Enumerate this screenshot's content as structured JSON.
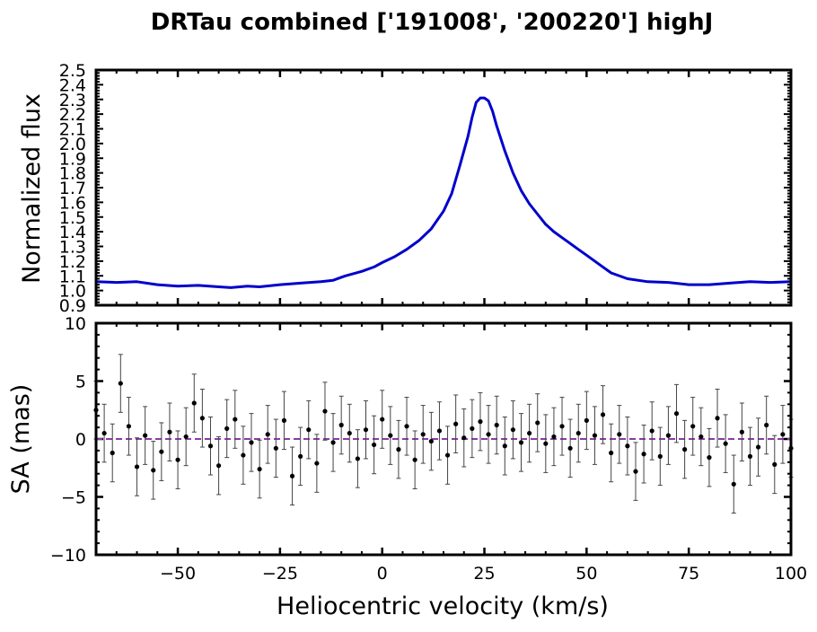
{
  "chart_data": {
    "title": "DRTau combined ['191008', '200220'] highJ",
    "shared_xaxis": {
      "label": "Heliocentric velocity (km/s)",
      "range": [
        -70,
        100
      ],
      "ticks": [
        -50,
        -25,
        0,
        25,
        50,
        75,
        100
      ],
      "tick_labels": [
        "−50",
        "−25",
        "0",
        "25",
        "50",
        "75",
        "100"
      ]
    },
    "panels": [
      {
        "type": "line",
        "ylabel": "Normalized flux",
        "ylim": [
          0.9,
          2.5
        ],
        "yticks": [
          0.9,
          1.0,
          1.1,
          1.2,
          1.3,
          1.4,
          1.5,
          1.6,
          1.7,
          1.8,
          1.9,
          2.0,
          2.1,
          2.2,
          2.3,
          2.4,
          2.5
        ],
        "ytick_labels": [
          "0.9",
          "1.0",
          "1.1",
          "1.2",
          "1.3",
          "1.4",
          "1.5",
          "1.6",
          "1.7",
          "1.8",
          "1.9",
          "2.0",
          "2.1",
          "2.2",
          "2.3",
          "2.4",
          "2.5"
        ],
        "series": [
          {
            "color": "#0000cc",
            "x": [
              -70,
              -65,
              -60,
              -55,
              -50,
              -45,
              -40,
              -37,
              -33,
              -30,
              -25,
              -20,
              -15,
              -12,
              -9,
              -5,
              -2,
              0,
              3,
              6,
              9,
              12,
              15,
              17,
              19,
              21,
              22,
              23,
              24,
              25,
              26,
              27,
              28,
              30,
              32,
              34,
              36,
              38,
              40,
              42,
              44,
              46,
              48,
              50,
              53,
              56,
              60,
              65,
              70,
              75,
              80,
              85,
              90,
              95,
              100
            ],
            "y": [
              1.06,
              1.055,
              1.06,
              1.04,
              1.03,
              1.035,
              1.025,
              1.02,
              1.03,
              1.025,
              1.04,
              1.05,
              1.06,
              1.07,
              1.1,
              1.13,
              1.16,
              1.19,
              1.23,
              1.28,
              1.34,
              1.42,
              1.54,
              1.66,
              1.85,
              2.05,
              2.18,
              2.28,
              2.31,
              2.31,
              2.29,
              2.22,
              2.12,
              1.95,
              1.8,
              1.68,
              1.59,
              1.52,
              1.45,
              1.4,
              1.36,
              1.32,
              1.28,
              1.24,
              1.18,
              1.12,
              1.08,
              1.06,
              1.055,
              1.04,
              1.04,
              1.05,
              1.06,
              1.055,
              1.06
            ]
          }
        ]
      },
      {
        "type": "scatter",
        "ylabel": "SA (mas)",
        "ylim": [
          -10,
          10
        ],
        "yticks": [
          -10,
          -5,
          0,
          5,
          10
        ],
        "ytick_labels": [
          "−10",
          "−5",
          "0",
          "5",
          "10"
        ],
        "reference_line": {
          "y": 0,
          "style": "dashed",
          "color": "#8b3aa8"
        },
        "series": [
          {
            "color": "#000000",
            "error": 2.5,
            "x": [
              -70,
              -68,
              -66,
              -64,
              -62,
              -60,
              -58,
              -56,
              -54,
              -52,
              -50,
              -48,
              -46,
              -44,
              -42,
              -40,
              -38,
              -36,
              -34,
              -32,
              -30,
              -28,
              -26,
              -24,
              -22,
              -20,
              -18,
              -16,
              -14,
              -12,
              -10,
              -8,
              -6,
              -4,
              -2,
              0,
              2,
              4,
              6,
              8,
              10,
              12,
              14,
              16,
              18,
              20,
              22,
              24,
              26,
              28,
              30,
              32,
              34,
              36,
              38,
              40,
              42,
              44,
              46,
              48,
              50,
              52,
              54,
              56,
              58,
              60,
              62,
              64,
              66,
              68,
              70,
              72,
              74,
              76,
              78,
              80,
              82,
              84,
              86,
              88,
              90,
              92,
              94,
              96,
              98,
              100
            ],
            "y": [
              2.5,
              0.5,
              -1.2,
              4.8,
              1.1,
              -2.4,
              0.3,
              -2.7,
              -1.1,
              0.6,
              -1.8,
              0.2,
              3.1,
              1.8,
              -0.6,
              -2.3,
              0.9,
              1.7,
              -1.4,
              -0.3,
              -2.6,
              0.4,
              -0.8,
              1.6,
              -3.2,
              -1.5,
              0.8,
              -2.1,
              2.4,
              -0.3,
              1.2,
              0.5,
              -1.7,
              0.8,
              -0.5,
              1.7,
              0.3,
              -0.9,
              1.1,
              -1.8,
              0.4,
              -0.2,
              0.7,
              -1.4,
              1.3,
              0.1,
              0.9,
              1.5,
              0.4,
              1.2,
              -0.6,
              0.8,
              -0.3,
              0.5,
              1.4,
              -0.4,
              0.2,
              1.1,
              -0.8,
              0.5,
              1.6,
              0.3,
              2.1,
              -1.2,
              0.4,
              -0.6,
              -2.8,
              -1.3,
              0.7,
              -1.5,
              0.3,
              2.2,
              -0.9,
              1.1,
              0.2,
              -1.6,
              1.8,
              -0.4,
              -3.9,
              0.6,
              -1.5,
              -0.7,
              1.2,
              -2.2,
              0.4,
              -0.8
            ]
          }
        ]
      }
    ]
  }
}
